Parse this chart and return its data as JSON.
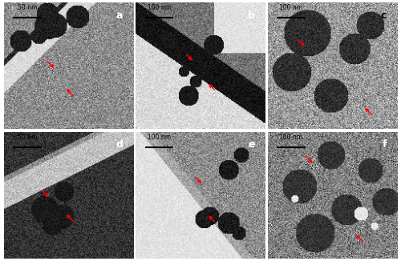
{
  "figure_width": 5.0,
  "figure_height": 3.26,
  "dpi": 100,
  "nrows": 2,
  "ncols": 3,
  "labels": [
    "a",
    "b",
    "c",
    "d",
    "e",
    "f"
  ],
  "scale_bar_texts": [
    "50 nm",
    "100 nm",
    "100 nm",
    "50 nm",
    "100 nm",
    "100 nm"
  ],
  "bg_color": "#ffffff",
  "label_color": "#ffffff",
  "label_color_c": "#000000",
  "arrow_color": "#ff0000",
  "scale_bar_color": "#000000",
  "scale_text_color": "#ffffff",
  "scale_text_color_bc": "#000000"
}
